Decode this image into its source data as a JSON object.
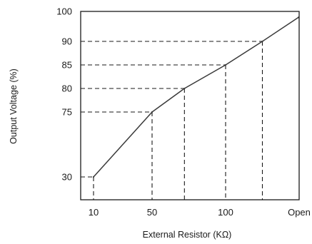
{
  "chart_data": {
    "type": "line",
    "title": "",
    "xlabel": "External Resistor (KΩ)",
    "ylabel": "Output Voltage (%)",
    "x_tick_labels": [
      "10",
      "50",
      "100",
      "Open"
    ],
    "y_tick_labels": [
      "30",
      "75",
      "80",
      "85",
      "90",
      "100"
    ],
    "grid": false,
    "legend": "none",
    "colors": {
      "line": "#3a3a3a",
      "frame": "#1a1a1a",
      "guides": "#1a1a1a"
    },
    "series": [
      {
        "points": [
          {
            "x": "10",
            "y": 30
          },
          {
            "x": "50",
            "y": 75
          },
          {
            "x": "~72",
            "y": 80
          },
          {
            "x": "100",
            "y": 85
          },
          {
            "x": "~125",
            "y": 90
          },
          {
            "x": "Open",
            "y": 98
          }
        ]
      }
    ],
    "reference_points": [
      {
        "x": "10",
        "y": 30
      },
      {
        "x": "50",
        "y": 75
      },
      {
        "x": "~72",
        "y": 80
      },
      {
        "x": "100",
        "y": 85
      },
      {
        "x": "~125",
        "y": 90
      }
    ]
  }
}
